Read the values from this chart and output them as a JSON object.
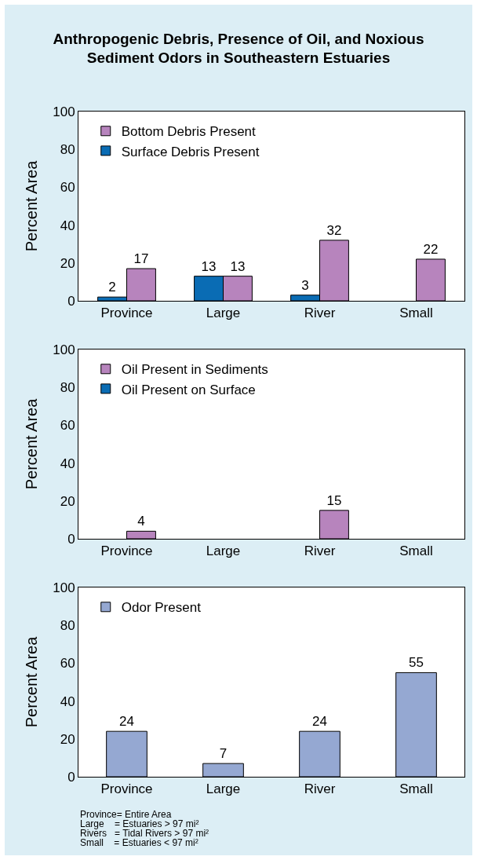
{
  "chart_data": [
    {
      "type": "bar",
      "title": "Anthropogenic Debris, Presence of Oil, and Noxious Sediment Odors in Southeastern Estuaries",
      "ylabel": "Percent Area",
      "categories": [
        "Province",
        "Large",
        "River",
        "Small"
      ],
      "series": [
        {
          "name": "Surface Debris Present",
          "color": "#0a6cb4",
          "values": [
            2,
            13,
            3,
            null
          ]
        },
        {
          "name": "Bottom Debris Present",
          "color": "#b784bd",
          "values": [
            17,
            13,
            32,
            22
          ]
        }
      ],
      "ylim": [
        0,
        100
      ],
      "yticks": [
        0,
        20,
        40,
        60,
        80,
        100
      ],
      "grid": false,
      "legend": "top left",
      "data_labels": true
    },
    {
      "type": "bar",
      "ylabel": "Percent Area",
      "categories": [
        "Province",
        "Large",
        "River",
        "Small"
      ],
      "series": [
        {
          "name": "Oil Present on Surface",
          "color": "#0a6cb4",
          "values": [
            null,
            null,
            null,
            null
          ]
        },
        {
          "name": "Oil Present in Sediments",
          "color": "#b784bd",
          "values": [
            4,
            null,
            15,
            null
          ]
        }
      ],
      "ylim": [
        0,
        100
      ],
      "yticks": [
        0,
        20,
        40,
        60,
        80,
        100
      ],
      "grid": false,
      "legend": "top left",
      "data_labels": true
    },
    {
      "type": "bar",
      "ylabel": "Percent Area",
      "categories": [
        "Province",
        "Large",
        "River",
        "Small"
      ],
      "series": [
        {
          "name": "Odor Present",
          "color": "#95a8d2",
          "values": [
            24,
            7,
            24,
            55
          ]
        }
      ],
      "ylim": [
        0,
        100
      ],
      "yticks": [
        0,
        20,
        40,
        60,
        80,
        100
      ],
      "grid": false,
      "legend": "top left",
      "data_labels": true,
      "annotations": [
        "Province= Entire Area",
        "Large    = Estuaries > 97 mi²",
        "Rivers   = Tidal Rivers > 97 mi²",
        "Small    = Estuaries < 97 mi²"
      ]
    }
  ]
}
